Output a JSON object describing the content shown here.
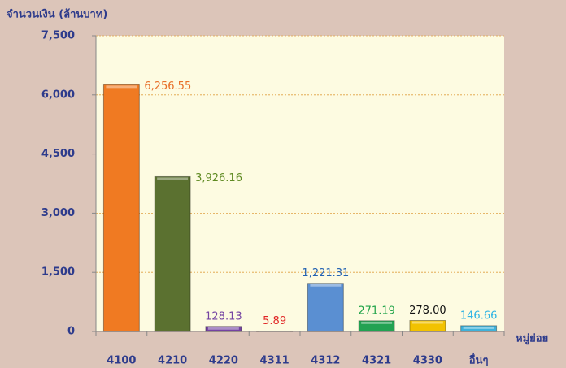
{
  "chart_data": {
    "type": "bar",
    "y_label": "จำนวนเงิน (ล้านบาท)",
    "x_label": "หมู่ย่อย",
    "categories": [
      "4100",
      "4210",
      "4220",
      "4311",
      "4312",
      "4321",
      "4330",
      "อื่นๆ"
    ],
    "values": [
      6256.55,
      3926.16,
      128.13,
      5.89,
      1221.31,
      271.19,
      278.0,
      146.66
    ],
    "value_labels": [
      "6,256.55",
      "3,926.16",
      "128.13",
      "5.89",
      "1,221.31",
      "271.19",
      "278.00",
      "146.66"
    ],
    "colors": [
      "#f07a22",
      "#5b7130",
      "#7443a2",
      "#e02424",
      "#5a8fd2",
      "#22a252",
      "#f2c200",
      "#3fb2da"
    ],
    "label_colors": [
      "#e8702a",
      "#5f8a22",
      "#7443a2",
      "#e02424",
      "#2261b2",
      "#1fa348",
      "#111111",
      "#2fb4e4"
    ],
    "ylim": [
      0,
      7500
    ],
    "yticks": [
      0,
      {
        "value": 1500,
        "label": "1,500"
      },
      {
        "value": 3000,
        "label": "3,000"
      },
      {
        "value": 4500,
        "label": "4,500"
      },
      {
        "value": 6000,
        "label": "6,000"
      },
      {
        "value": 7500,
        "label": "7,500"
      }
    ],
    "grid": true
  }
}
